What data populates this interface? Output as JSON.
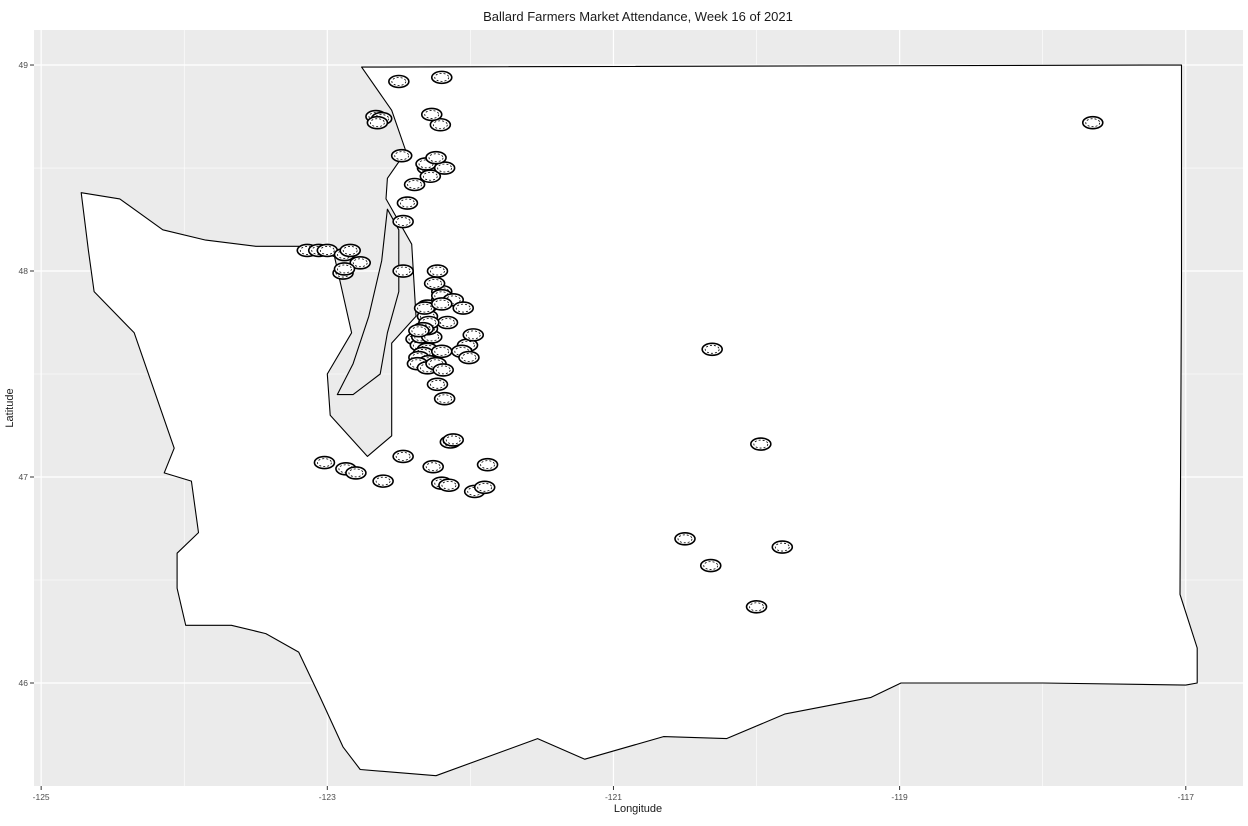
{
  "chart_data": {
    "type": "scatter",
    "title": "Ballard Farmers Market Attendance, Week 16 of 2021",
    "xlabel": "Longitude",
    "ylabel": "Latitude",
    "xlim": [
      -125.05,
      -116.6
    ],
    "ylim": [
      45.5,
      49.17
    ],
    "x_ticks": [
      -125,
      -123,
      -121,
      -119,
      -117
    ],
    "y_ticks": [
      46,
      47,
      48,
      49
    ],
    "grid": true,
    "colors": {
      "panel_background": "#ebebeb",
      "grid_major": "#ffffff",
      "land_fill": "#ffffff",
      "water_fill": "#ebebeb",
      "outline": "#000000",
      "marker": "#000000"
    },
    "state_outline": [
      [
        -122.76,
        48.99
      ],
      [
        -117.03,
        49.0
      ],
      [
        -117.03,
        47.98
      ],
      [
        -117.04,
        46.43
      ],
      [
        -116.92,
        46.17
      ],
      [
        -116.92,
        46.0
      ],
      [
        -117.0,
        45.99
      ],
      [
        -118.0,
        46.0
      ],
      [
        -118.99,
        46.0
      ],
      [
        -119.2,
        45.93
      ],
      [
        -119.8,
        45.85
      ],
      [
        -120.21,
        45.73
      ],
      [
        -120.65,
        45.74
      ],
      [
        -121.2,
        45.63
      ],
      [
        -121.53,
        45.73
      ],
      [
        -122.24,
        45.55
      ],
      [
        -122.77,
        45.58
      ],
      [
        -122.89,
        45.69
      ],
      [
        -123.05,
        45.93
      ],
      [
        -123.2,
        46.15
      ],
      [
        -123.43,
        46.24
      ],
      [
        -123.67,
        46.28
      ],
      [
        -123.99,
        46.28
      ],
      [
        -124.05,
        46.46
      ],
      [
        -124.05,
        46.63
      ],
      [
        -123.9,
        46.73
      ],
      [
        -123.95,
        46.98
      ],
      [
        -124.14,
        47.02
      ],
      [
        -124.07,
        47.14
      ],
      [
        -124.2,
        47.4
      ],
      [
        -124.35,
        47.7
      ],
      [
        -124.63,
        47.9
      ],
      [
        -124.67,
        48.1
      ],
      [
        -124.72,
        48.38
      ],
      [
        -124.45,
        48.35
      ],
      [
        -124.15,
        48.2
      ],
      [
        -123.85,
        48.15
      ],
      [
        -123.5,
        48.12
      ],
      [
        -123.2,
        48.12
      ],
      [
        -122.95,
        48.07
      ],
      [
        -122.83,
        47.7
      ],
      [
        -123.0,
        47.5
      ],
      [
        -122.98,
        47.3
      ],
      [
        -122.72,
        47.1
      ],
      [
        -122.55,
        47.2
      ],
      [
        -122.55,
        47.65
      ],
      [
        -122.38,
        47.78
      ],
      [
        -122.41,
        48.13
      ],
      [
        -122.59,
        48.35
      ],
      [
        -122.58,
        48.45
      ],
      [
        -122.45,
        48.58
      ],
      [
        -122.55,
        48.78
      ],
      [
        -122.76,
        48.99
      ]
    ],
    "water_polygons": [
      [
        [
          -122.62,
          48.05
        ],
        [
          -122.71,
          47.78
        ],
        [
          -122.82,
          47.55
        ],
        [
          -122.93,
          47.4
        ],
        [
          -122.82,
          47.4
        ],
        [
          -122.63,
          47.5
        ],
        [
          -122.58,
          47.7
        ],
        [
          -122.5,
          47.9
        ],
        [
          -122.5,
          48.2
        ],
        [
          -122.58,
          48.3
        ],
        [
          -122.62,
          48.05
        ]
      ]
    ],
    "series": [
      {
        "x": [
          -122.38,
          -122.32,
          -122.35,
          -122.3,
          -122.33,
          -122.36,
          -122.29,
          -122.31,
          -122.34,
          -122.27,
          -122.37,
          -122.3,
          -122.24,
          -122.19,
          -122.23,
          -122.18,
          -122.14,
          -122.12,
          -122.2,
          -122.16,
          -122.02,
          -122.06,
          -122.01,
          -121.98,
          -122.3,
          -122.3,
          -122.3,
          -122.29,
          -122.33,
          -122.36,
          -122.2,
          -122.2,
          -122.2,
          -122.12,
          -122.25,
          -122.23,
          -122.44,
          -122.39,
          -122.47,
          -122.3,
          -122.31,
          -122.28,
          -122.18,
          -122.24,
          -122.21,
          -122.27,
          -122.48,
          -122.32,
          -122.2,
          -122.05,
          -122.5,
          -122.2,
          -122.66,
          -122.62,
          -122.65,
          -123.14,
          -123.06,
          -122.47,
          -123.0,
          -122.88,
          -122.84,
          -122.77,
          -122.89,
          -122.88,
          -123.02,
          -122.87,
          -122.8,
          -122.61,
          -122.2,
          -122.15,
          -122.47,
          -122.26,
          -121.97,
          -121.9,
          -121.88,
          -120.31,
          -119.97,
          -120.5,
          -120.32,
          -120.0,
          -119.82,
          -117.65
        ],
        "y": [
          47.67,
          47.66,
          47.64,
          47.62,
          47.6,
          47.58,
          47.56,
          47.7,
          47.68,
          47.68,
          47.55,
          47.53,
          47.55,
          47.52,
          47.45,
          47.38,
          47.17,
          47.18,
          47.61,
          47.75,
          47.64,
          47.61,
          47.58,
          47.69,
          47.78,
          47.83,
          47.72,
          47.75,
          47.72,
          47.71,
          47.86,
          47.9,
          47.88,
          47.86,
          47.94,
          48.0,
          48.33,
          48.42,
          48.24,
          48.5,
          48.52,
          48.46,
          48.5,
          48.55,
          48.71,
          48.76,
          48.56,
          47.82,
          47.84,
          47.82,
          48.92,
          48.94,
          48.75,
          48.74,
          48.72,
          48.1,
          48.1,
          48.0,
          48.1,
          48.08,
          48.1,
          48.04,
          47.99,
          48.01,
          47.07,
          47.04,
          47.02,
          46.98,
          46.97,
          46.96,
          47.1,
          47.05,
          46.93,
          46.95,
          47.06,
          47.62,
          47.16,
          46.7,
          46.57,
          46.37,
          46.66,
          48.72
        ]
      }
    ]
  }
}
